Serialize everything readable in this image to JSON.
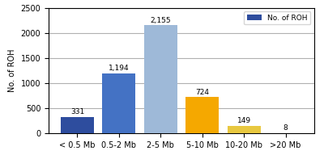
{
  "chart_data": {
    "type": "bar",
    "categories": [
      "< 0.5 Mb",
      "0.5-2 Mb",
      "2-5 Mb",
      "5-10 Mb",
      "10-20 Mb",
      ">20 Mb"
    ],
    "series": [
      {
        "name": "No. of ROH",
        "values": [
          331,
          1194,
          2155,
          724,
          149,
          8
        ],
        "value_labels": [
          "331",
          "1,194",
          "2,155",
          "724",
          "149",
          "8"
        ],
        "colors": [
          "#2e4d9e",
          "#4472c4",
          "#9eb9d8",
          "#f5a800",
          "#e8c840",
          "#c8a820"
        ]
      }
    ],
    "ylabel": "No. of ROH",
    "ylim": [
      0,
      2500
    ],
    "yticks": [
      0,
      500,
      1000,
      1500,
      2000,
      2500
    ],
    "grid": true,
    "legend": "upper right",
    "data_labels": true
  }
}
